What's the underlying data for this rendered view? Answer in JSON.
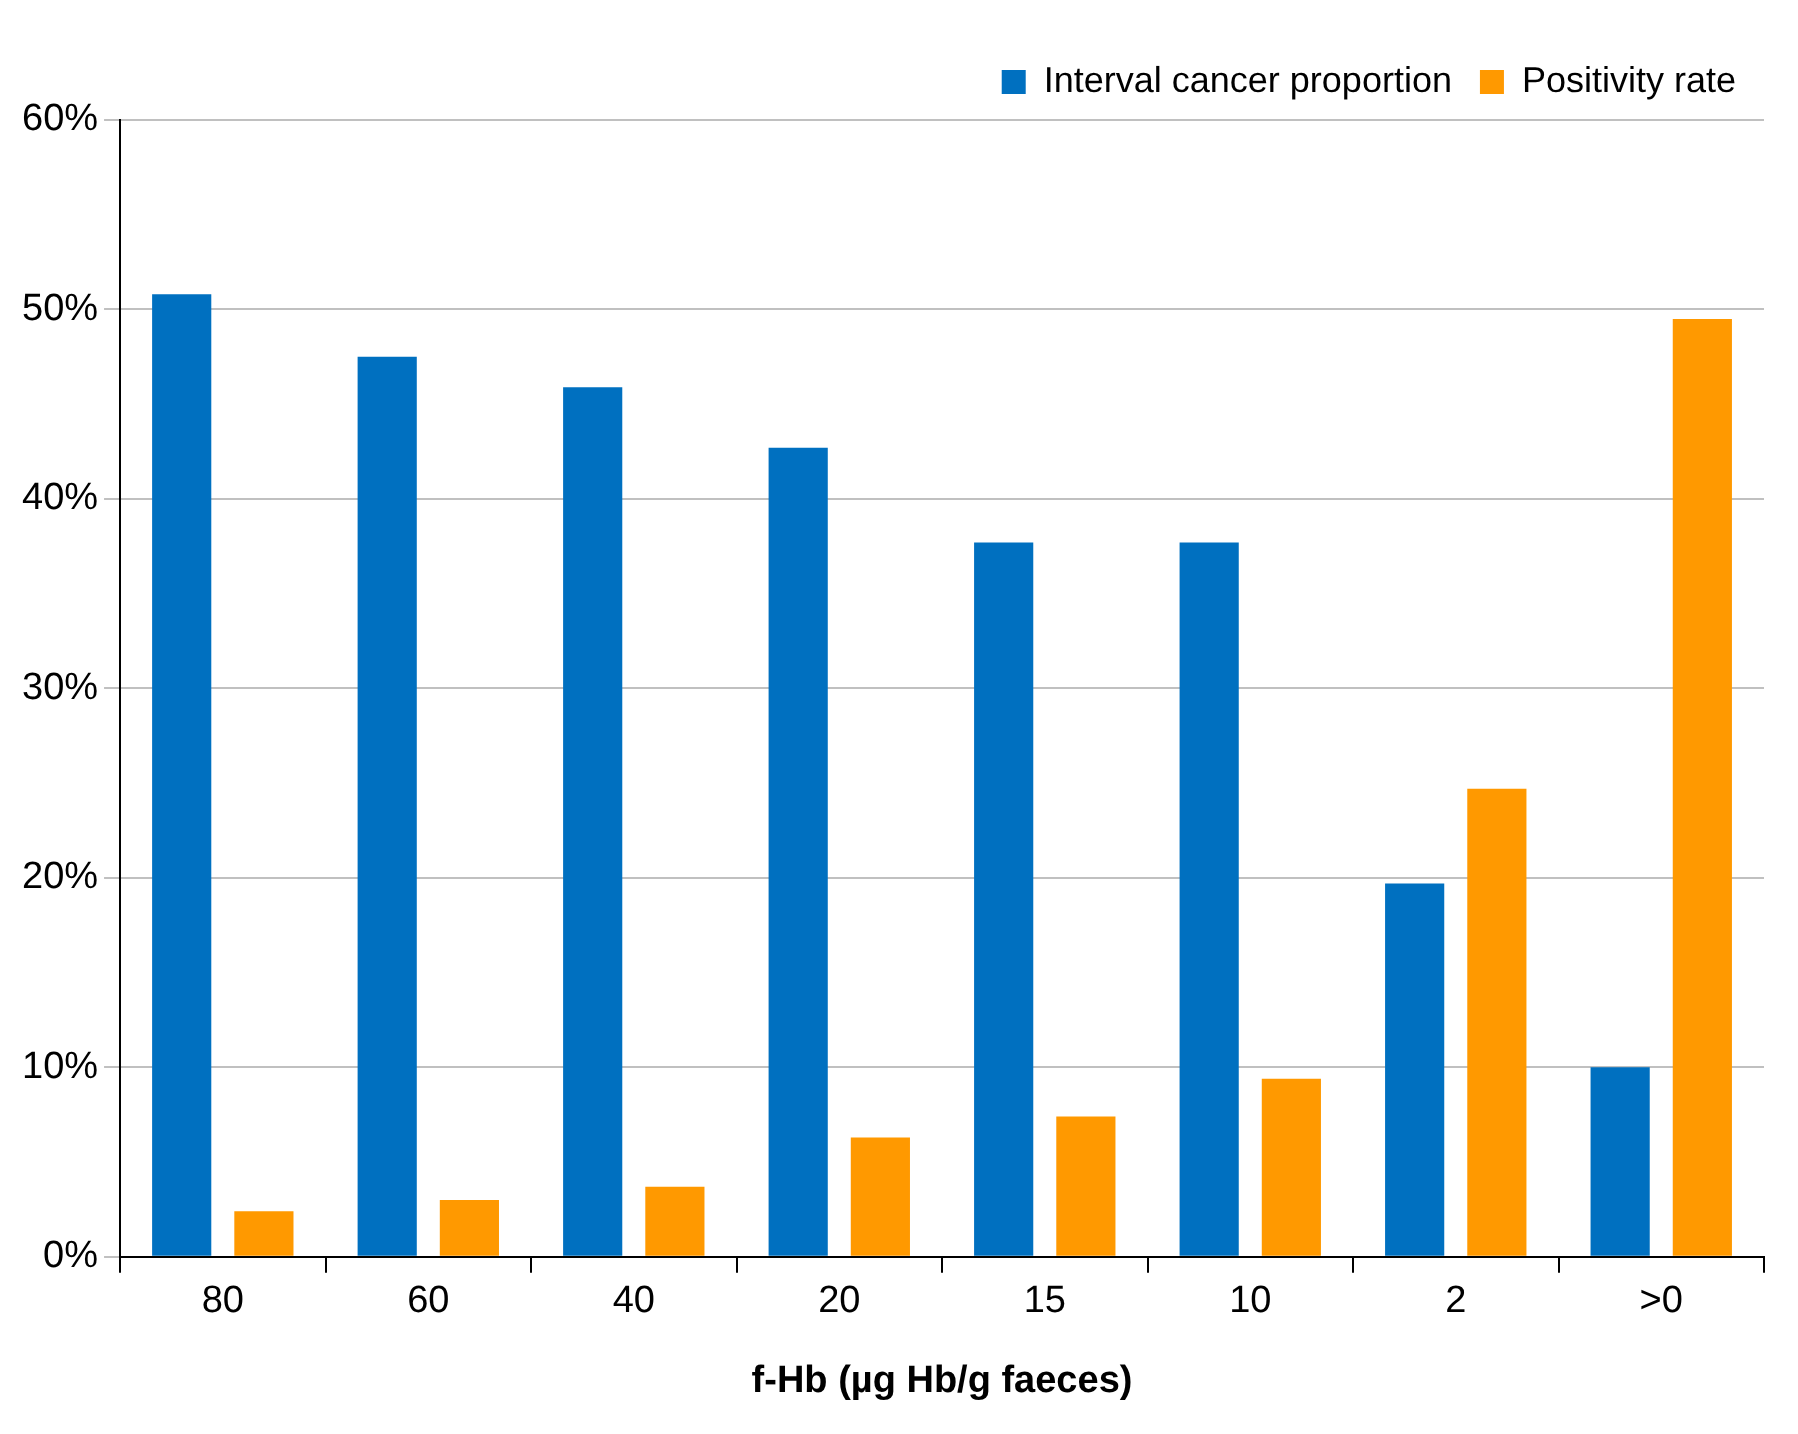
{
  "chart_data": {
    "type": "bar",
    "xlabel": "f-Hb (µg Hb/g faeces)",
    "categories": [
      "80",
      "60",
      "40",
      "20",
      "15",
      "10",
      "2",
      ">0"
    ],
    "series": [
      {
        "name": "Interval cancer proportion",
        "color": "#0070c0",
        "values": [
          50.8,
          47.5,
          45.9,
          42.7,
          37.7,
          37.7,
          19.7,
          10.0
        ]
      },
      {
        "name": "Positivity rate",
        "color": "#ff9900",
        "values": [
          2.4,
          3.0,
          3.7,
          6.3,
          7.4,
          9.4,
          24.7,
          49.5
        ]
      }
    ],
    "ylim": [
      0,
      60
    ],
    "yticks": [
      {
        "value": 0,
        "label": "0%"
      },
      {
        "value": 10,
        "label": "10%"
      },
      {
        "value": 20,
        "label": "20%"
      },
      {
        "value": 30,
        "label": "30%"
      },
      {
        "value": 40,
        "label": "40%"
      },
      {
        "value": 50,
        "label": "50%"
      },
      {
        "value": 60,
        "label": "60%"
      }
    ],
    "grid": "y",
    "legend": "top right"
  }
}
